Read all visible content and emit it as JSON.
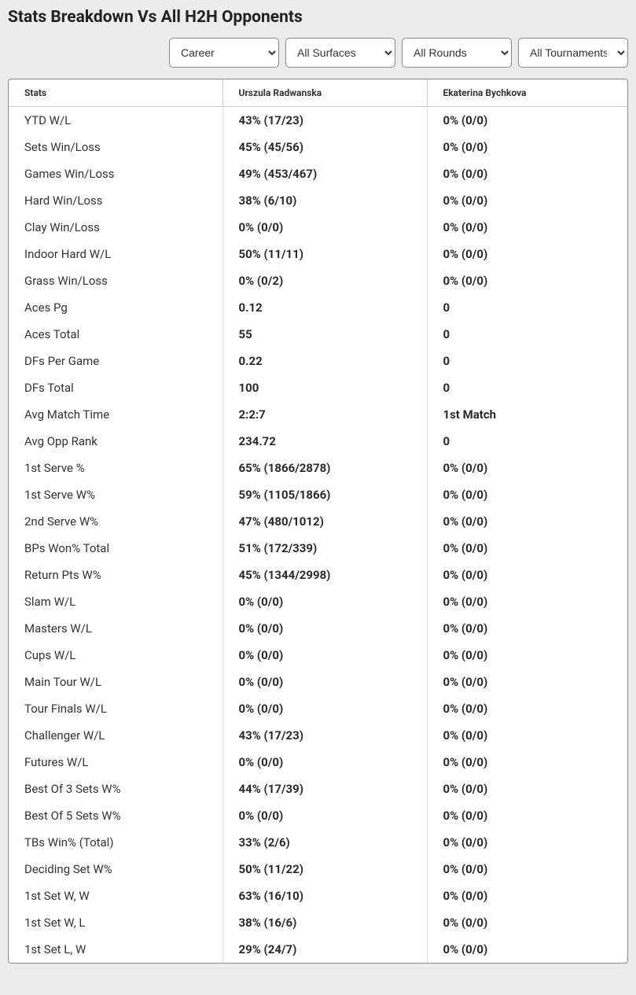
{
  "title": "Stats Breakdown Vs All H2H Opponents",
  "filters": {
    "period": {
      "selected": "Career",
      "options": [
        "Career"
      ]
    },
    "surface": {
      "selected": "All Surfaces",
      "options": [
        "All Surfaces"
      ]
    },
    "round": {
      "selected": "All Rounds",
      "options": [
        "All Rounds"
      ]
    },
    "tourn": {
      "selected": "All Tournaments",
      "options": [
        "All Tournaments"
      ]
    }
  },
  "table": {
    "columns": [
      "Stats",
      "Urszula Radwanska",
      "Ekaterina Bychkova"
    ],
    "rows": [
      [
        "YTD W/L",
        "43% (17/23)",
        "0% (0/0)"
      ],
      [
        "Sets Win/Loss",
        "45% (45/56)",
        "0% (0/0)"
      ],
      [
        "Games Win/Loss",
        "49% (453/467)",
        "0% (0/0)"
      ],
      [
        "Hard Win/Loss",
        "38% (6/10)",
        "0% (0/0)"
      ],
      [
        "Clay Win/Loss",
        "0% (0/0)",
        "0% (0/0)"
      ],
      [
        "Indoor Hard W/L",
        "50% (11/11)",
        "0% (0/0)"
      ],
      [
        "Grass Win/Loss",
        "0% (0/2)",
        "0% (0/0)"
      ],
      [
        "Aces Pg",
        "0.12",
        "0"
      ],
      [
        "Aces Total",
        "55",
        "0"
      ],
      [
        "DFs Per Game",
        "0.22",
        "0"
      ],
      [
        "DFs Total",
        "100",
        "0"
      ],
      [
        "Avg Match Time",
        "2:2:7",
        "1st Match"
      ],
      [
        "Avg Opp Rank",
        "234.72",
        "0"
      ],
      [
        "1st Serve %",
        "65% (1866/2878)",
        "0% (0/0)"
      ],
      [
        "1st Serve W%",
        "59% (1105/1866)",
        "0% (0/0)"
      ],
      [
        "2nd Serve W%",
        "47% (480/1012)",
        "0% (0/0)"
      ],
      [
        "BPs Won% Total",
        "51% (172/339)",
        "0% (0/0)"
      ],
      [
        "Return Pts W%",
        "45% (1344/2998)",
        "0% (0/0)"
      ],
      [
        "Slam W/L",
        "0% (0/0)",
        "0% (0/0)"
      ],
      [
        "Masters W/L",
        "0% (0/0)",
        "0% (0/0)"
      ],
      [
        "Cups W/L",
        "0% (0/0)",
        "0% (0/0)"
      ],
      [
        "Main Tour W/L",
        "0% (0/0)",
        "0% (0/0)"
      ],
      [
        "Tour Finals W/L",
        "0% (0/0)",
        "0% (0/0)"
      ],
      [
        "Challenger W/L",
        "43% (17/23)",
        "0% (0/0)"
      ],
      [
        "Futures W/L",
        "0% (0/0)",
        "0% (0/0)"
      ],
      [
        "Best Of 3 Sets W%",
        "44% (17/39)",
        "0% (0/0)"
      ],
      [
        "Best Of 5 Sets W%",
        "0% (0/0)",
        "0% (0/0)"
      ],
      [
        "TBs Win% (Total)",
        "33% (2/6)",
        "0% (0/0)"
      ],
      [
        "Deciding Set W%",
        "50% (11/22)",
        "0% (0/0)"
      ],
      [
        "1st Set W, W",
        "63% (16/10)",
        "0% (0/0)"
      ],
      [
        "1st Set W, L",
        "38% (16/6)",
        "0% (0/0)"
      ],
      [
        "1st Set L, W",
        "29% (24/7)",
        "0% (0/0)"
      ]
    ]
  },
  "style": {
    "page_bg": "#ececec",
    "card_bg": "#ffffff",
    "border_color": "#888888",
    "header_text_color": "#333333",
    "body_text_color": "#2a2a2a",
    "header_fontsize": 12,
    "body_fontsize": 15,
    "title_fontsize": 21
  }
}
